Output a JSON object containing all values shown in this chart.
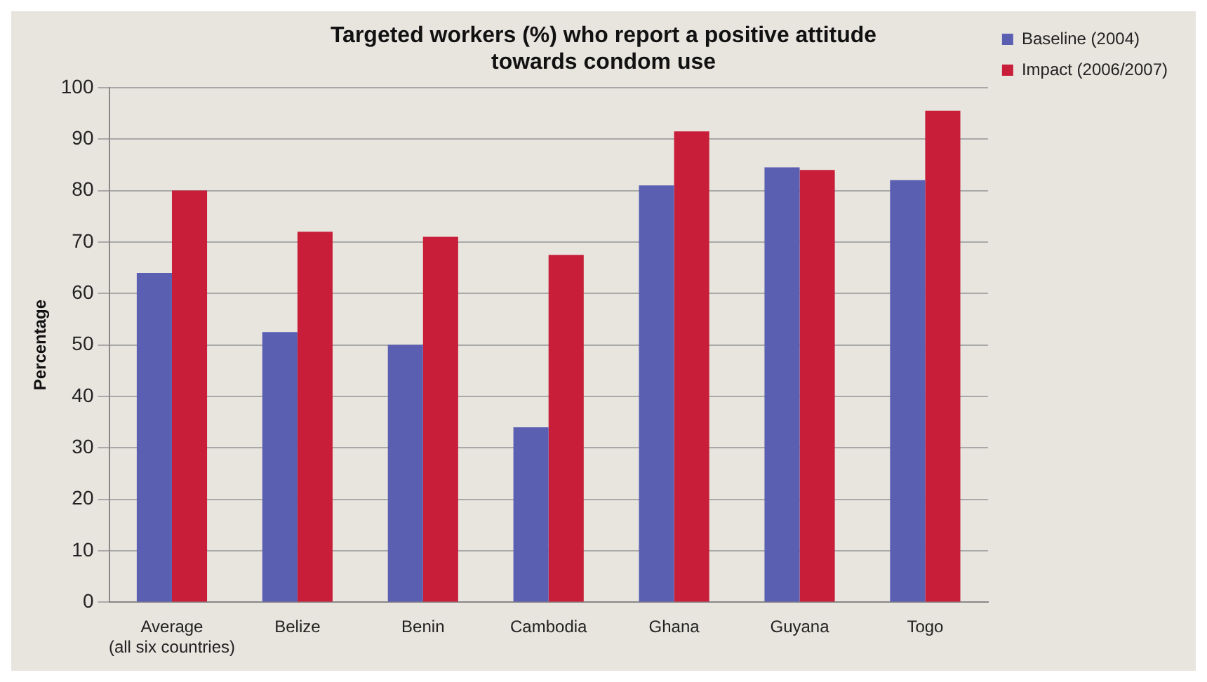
{
  "chart_data": {
    "type": "bar",
    "title": "Targeted workers (%) who report a positive attitude\ntowards condom use",
    "ylabel": "Percentage",
    "categories": [
      "Average\n(all six countries)",
      "Belize",
      "Benin",
      "Cambodia",
      "Ghana",
      "Guyana",
      "Togo"
    ],
    "series": [
      {
        "name": "Baseline (2004)",
        "color": "#5a5fb2",
        "values": [
          64,
          52.5,
          50,
          34,
          81,
          84.5,
          82
        ]
      },
      {
        "name": "Impact (2006/2007)",
        "color": "#c81e3a",
        "values": [
          80,
          72,
          71,
          67.5,
          91.5,
          84,
          95.5
        ]
      }
    ],
    "ylim": [
      0,
      100
    ],
    "yticks": [
      0,
      10,
      20,
      30,
      40,
      50,
      60,
      70,
      80,
      90,
      100
    ],
    "grid": "y",
    "legend": "top right"
  }
}
